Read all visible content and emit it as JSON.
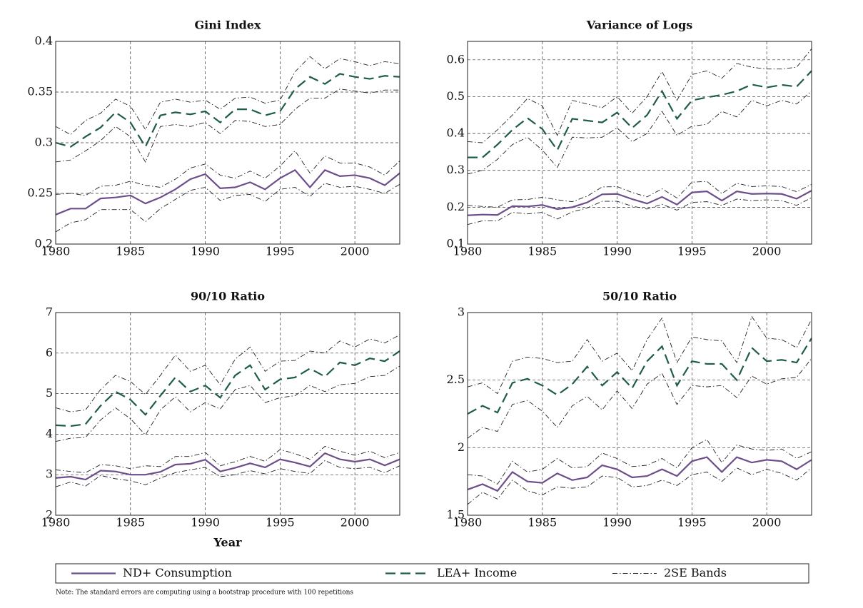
{
  "chart_data": [
    {
      "type": "line",
      "title": "Gini Index",
      "x": [
        1980,
        1981,
        1982,
        1983,
        1984,
        1985,
        1986,
        1987,
        1988,
        1989,
        1990,
        1991,
        1992,
        1993,
        1994,
        1995,
        1996,
        1997,
        1998,
        1999,
        2000,
        2001,
        2002,
        2003
      ],
      "xlim": [
        1980,
        2003
      ],
      "xticks": [
        1980,
        1985,
        1990,
        1995,
        2000
      ],
      "ylim": [
        0.2,
        0.4
      ],
      "yticks": [
        0.2,
        0.25,
        0.3,
        0.35,
        0.4
      ],
      "grid": true,
      "series": [
        {
          "name": "ND+ Consumption",
          "color": "#6b4e8a",
          "style": "solid",
          "values": [
            0.229,
            0.235,
            0.235,
            0.245,
            0.246,
            0.248,
            0.24,
            0.246,
            0.254,
            0.264,
            0.269,
            0.255,
            0.256,
            0.261,
            0.254,
            0.265,
            0.273,
            0.256,
            0.273,
            0.267,
            0.268,
            0.265,
            0.258,
            0.27
          ]
        },
        {
          "name": "LEA+ Income",
          "color": "#1e5c46",
          "style": "dashed",
          "values": [
            0.3,
            0.296,
            0.306,
            0.315,
            0.33,
            0.32,
            0.296,
            0.327,
            0.33,
            0.328,
            0.331,
            0.32,
            0.333,
            0.333,
            0.327,
            0.331,
            0.353,
            0.365,
            0.358,
            0.368,
            0.365,
            0.363,
            0.366,
            0.365
          ]
        },
        {
          "name": "2SE Bands",
          "color": "#222222",
          "style": "dashdot",
          "values": [
            0.249,
            0.25,
            0.248,
            0.257,
            0.258,
            0.262,
            0.258,
            0.256,
            0.264,
            0.275,
            0.279,
            0.268,
            0.265,
            0.272,
            0.265,
            0.277,
            0.292,
            0.27,
            0.287,
            0.28,
            0.28,
            0.276,
            0.268,
            0.282
          ]
        },
        {
          "name": "2SE Bands",
          "color": "#222222",
          "style": "dashdot",
          "values": [
            0.212,
            0.221,
            0.224,
            0.234,
            0.234,
            0.234,
            0.222,
            0.235,
            0.244,
            0.253,
            0.256,
            0.243,
            0.248,
            0.249,
            0.242,
            0.254,
            0.256,
            0.247,
            0.26,
            0.256,
            0.257,
            0.254,
            0.25,
            0.259
          ]
        },
        {
          "name": "2SE Bands",
          "color": "#222222",
          "style": "dashdot",
          "values": [
            0.316,
            0.308,
            0.322,
            0.329,
            0.343,
            0.336,
            0.313,
            0.34,
            0.343,
            0.34,
            0.342,
            0.333,
            0.344,
            0.345,
            0.339,
            0.342,
            0.37,
            0.385,
            0.373,
            0.383,
            0.38,
            0.376,
            0.38,
            0.378
          ]
        },
        {
          "name": "2SE Bands",
          "color": "#222222",
          "style": "dashdot",
          "values": [
            0.281,
            0.283,
            0.292,
            0.302,
            0.316,
            0.306,
            0.281,
            0.316,
            0.318,
            0.316,
            0.32,
            0.309,
            0.322,
            0.321,
            0.316,
            0.318,
            0.333,
            0.344,
            0.344,
            0.353,
            0.351,
            0.349,
            0.352,
            0.352
          ]
        }
      ]
    },
    {
      "type": "line",
      "title": "Variance of Logs",
      "x": [
        1980,
        1981,
        1982,
        1983,
        1984,
        1985,
        1986,
        1987,
        1988,
        1989,
        1990,
        1991,
        1992,
        1993,
        1994,
        1995,
        1996,
        1997,
        1998,
        1999,
        2000,
        2001,
        2002,
        2003
      ],
      "xlim": [
        1980,
        2003
      ],
      "xticks": [
        1980,
        1985,
        1990,
        1995,
        2000
      ],
      "ylim": [
        0.1,
        0.65
      ],
      "yticks": [
        0.1,
        0.2,
        0.3,
        0.4,
        0.5,
        0.6
      ],
      "grid": true,
      "series": [
        {
          "name": "ND+ Consumption",
          "color": "#6b4e8a",
          "style": "solid",
          "values": [
            0.178,
            0.18,
            0.179,
            0.203,
            0.202,
            0.206,
            0.195,
            0.2,
            0.213,
            0.235,
            0.236,
            0.222,
            0.21,
            0.228,
            0.207,
            0.24,
            0.243,
            0.218,
            0.243,
            0.236,
            0.237,
            0.236,
            0.223,
            0.245
          ]
        },
        {
          "name": "LEA+ Income",
          "color": "#1e5c46",
          "style": "dashed",
          "values": [
            0.335,
            0.335,
            0.37,
            0.41,
            0.442,
            0.412,
            0.355,
            0.44,
            0.435,
            0.43,
            0.457,
            0.415,
            0.45,
            0.515,
            0.44,
            0.49,
            0.498,
            0.505,
            0.515,
            0.533,
            0.525,
            0.532,
            0.527,
            0.57
          ]
        },
        {
          "name": "2SE Bands",
          "color": "#222222",
          "style": "dashdot",
          "values": [
            0.205,
            0.202,
            0.2,
            0.22,
            0.221,
            0.227,
            0.22,
            0.215,
            0.23,
            0.255,
            0.256,
            0.24,
            0.228,
            0.25,
            0.225,
            0.268,
            0.27,
            0.237,
            0.265,
            0.256,
            0.258,
            0.256,
            0.242,
            0.262
          ]
        },
        {
          "name": "2SE Bands",
          "color": "#222222",
          "style": "dashdot",
          "values": [
            0.153,
            0.163,
            0.163,
            0.186,
            0.182,
            0.186,
            0.168,
            0.187,
            0.198,
            0.216,
            0.216,
            0.203,
            0.195,
            0.208,
            0.192,
            0.213,
            0.215,
            0.205,
            0.222,
            0.218,
            0.22,
            0.218,
            0.205,
            0.226
          ]
        },
        {
          "name": "2SE Bands",
          "color": "#222222",
          "style": "dashdot",
          "values": [
            0.378,
            0.375,
            0.41,
            0.45,
            0.495,
            0.475,
            0.395,
            0.49,
            0.48,
            0.47,
            0.5,
            0.455,
            0.5,
            0.568,
            0.49,
            0.56,
            0.57,
            0.55,
            0.59,
            0.58,
            0.575,
            0.575,
            0.58,
            0.63
          ]
        },
        {
          "name": "2SE Bands",
          "color": "#222222",
          "style": "dashdot",
          "values": [
            0.29,
            0.3,
            0.33,
            0.37,
            0.39,
            0.355,
            0.308,
            0.39,
            0.388,
            0.39,
            0.415,
            0.378,
            0.4,
            0.46,
            0.395,
            0.42,
            0.425,
            0.46,
            0.445,
            0.49,
            0.475,
            0.49,
            0.48,
            0.515
          ]
        }
      ]
    },
    {
      "type": "line",
      "title": "90/10 Ratio",
      "xlabel": "Year",
      "x": [
        1980,
        1981,
        1982,
        1983,
        1984,
        1985,
        1986,
        1987,
        1988,
        1989,
        1990,
        1991,
        1992,
        1993,
        1994,
        1995,
        1996,
        1997,
        1998,
        1999,
        2000,
        2001,
        2002,
        2003
      ],
      "xlim": [
        1980,
        2003
      ],
      "xticks": [
        1980,
        1985,
        1990,
        1995,
        2000
      ],
      "ylim": [
        2,
        7
      ],
      "yticks": [
        2,
        3,
        4,
        5,
        6,
        7
      ],
      "grid": true,
      "series": [
        {
          "name": "ND+ Consumption",
          "color": "#6b4e8a",
          "style": "solid",
          "values": [
            2.92,
            2.95,
            2.88,
            3.1,
            3.08,
            3.0,
            3.0,
            3.07,
            3.25,
            3.27,
            3.37,
            3.08,
            3.17,
            3.28,
            3.18,
            3.38,
            3.3,
            3.2,
            3.53,
            3.38,
            3.32,
            3.38,
            3.23,
            3.38
          ]
        },
        {
          "name": "LEA+ Income",
          "color": "#1e5c46",
          "style": "dashed",
          "values": [
            4.22,
            4.2,
            4.25,
            4.7,
            5.05,
            4.85,
            4.48,
            4.95,
            5.4,
            5.05,
            5.2,
            4.9,
            5.45,
            5.7,
            5.1,
            5.35,
            5.4,
            5.62,
            5.42,
            5.77,
            5.7,
            5.87,
            5.8,
            6.05
          ]
        },
        {
          "name": "2SE Bands",
          "color": "#222222",
          "style": "dashdot",
          "values": [
            3.12,
            3.08,
            3.05,
            3.25,
            3.22,
            3.15,
            3.22,
            3.2,
            3.45,
            3.45,
            3.55,
            3.22,
            3.32,
            3.45,
            3.33,
            3.62,
            3.52,
            3.38,
            3.7,
            3.58,
            3.48,
            3.58,
            3.42,
            3.55
          ]
        },
        {
          "name": "2SE Bands",
          "color": "#222222",
          "style": "dashdot",
          "values": [
            2.7,
            2.82,
            2.72,
            2.98,
            2.9,
            2.85,
            2.75,
            2.92,
            3.05,
            3.12,
            3.18,
            2.95,
            3.0,
            3.1,
            3.02,
            3.15,
            3.08,
            3.03,
            3.35,
            3.18,
            3.15,
            3.18,
            3.05,
            3.22
          ]
        },
        {
          "name": "2SE Bands",
          "color": "#222222",
          "style": "dashdot",
          "values": [
            4.65,
            4.55,
            4.6,
            5.1,
            5.45,
            5.3,
            4.98,
            5.45,
            5.95,
            5.55,
            5.7,
            5.22,
            5.85,
            6.15,
            5.55,
            5.8,
            5.82,
            6.05,
            6.0,
            6.3,
            6.15,
            6.35,
            6.25,
            6.45
          ]
        },
        {
          "name": "2SE Bands",
          "color": "#222222",
          "style": "dashdot",
          "values": [
            3.82,
            3.9,
            3.92,
            4.35,
            4.65,
            4.38,
            3.98,
            4.6,
            4.92,
            4.55,
            4.78,
            4.62,
            5.1,
            5.2,
            4.78,
            4.9,
            4.95,
            5.2,
            5.05,
            5.22,
            5.25,
            5.42,
            5.45,
            5.68
          ]
        }
      ]
    },
    {
      "type": "line",
      "title": "50/10 Ratio",
      "x": [
        1980,
        1981,
        1982,
        1983,
        1984,
        1985,
        1986,
        1987,
        1988,
        1989,
        1990,
        1991,
        1992,
        1993,
        1994,
        1995,
        1996,
        1997,
        1998,
        1999,
        2000,
        2001,
        2002,
        2003
      ],
      "xlim": [
        1980,
        2003
      ],
      "xticks": [
        1980,
        1985,
        1990,
        1995,
        2000
      ],
      "ylim": [
        1.5,
        3
      ],
      "yticks": [
        1.5,
        2,
        2.5,
        3
      ],
      "grid": true,
      "series": [
        {
          "name": "ND+ Consumption",
          "color": "#6b4e8a",
          "style": "solid",
          "values": [
            1.69,
            1.73,
            1.68,
            1.82,
            1.75,
            1.74,
            1.81,
            1.76,
            1.78,
            1.87,
            1.84,
            1.78,
            1.79,
            1.84,
            1.79,
            1.9,
            1.93,
            1.82,
            1.93,
            1.89,
            1.91,
            1.9,
            1.84,
            1.91
          ]
        },
        {
          "name": "LEA+ Income",
          "color": "#1e5c46",
          "style": "dashed",
          "values": [
            2.25,
            2.31,
            2.26,
            2.48,
            2.51,
            2.46,
            2.39,
            2.47,
            2.6,
            2.46,
            2.56,
            2.44,
            2.64,
            2.75,
            2.46,
            2.64,
            2.62,
            2.62,
            2.5,
            2.74,
            2.64,
            2.65,
            2.63,
            2.81
          ]
        },
        {
          "name": "2SE Bands",
          "color": "#222222",
          "style": "dashdot",
          "values": [
            1.8,
            1.79,
            1.73,
            1.9,
            1.82,
            1.84,
            1.92,
            1.85,
            1.86,
            1.96,
            1.92,
            1.86,
            1.87,
            1.92,
            1.85,
            2.0,
            2.06,
            1.89,
            2.02,
            1.99,
            1.98,
            1.99,
            1.92,
            1.97
          ]
        },
        {
          "name": "2SE Bands",
          "color": "#222222",
          "style": "dashdot",
          "values": [
            1.58,
            1.67,
            1.62,
            1.76,
            1.68,
            1.65,
            1.71,
            1.7,
            1.71,
            1.79,
            1.78,
            1.71,
            1.72,
            1.76,
            1.72,
            1.8,
            1.82,
            1.75,
            1.85,
            1.8,
            1.84,
            1.81,
            1.76,
            1.85
          ]
        },
        {
          "name": "2SE Bands",
          "color": "#222222",
          "style": "dashdot",
          "values": [
            2.45,
            2.48,
            2.4,
            2.64,
            2.67,
            2.66,
            2.63,
            2.64,
            2.8,
            2.64,
            2.7,
            2.57,
            2.8,
            2.96,
            2.63,
            2.82,
            2.8,
            2.79,
            2.63,
            2.97,
            2.81,
            2.8,
            2.74,
            2.95
          ]
        },
        {
          "name": "2SE Bands",
          "color": "#222222",
          "style": "dashdot",
          "values": [
            2.07,
            2.15,
            2.12,
            2.32,
            2.35,
            2.27,
            2.15,
            2.31,
            2.38,
            2.28,
            2.42,
            2.29,
            2.47,
            2.55,
            2.32,
            2.46,
            2.45,
            2.46,
            2.37,
            2.53,
            2.47,
            2.51,
            2.52,
            2.66
          ]
        }
      ]
    }
  ],
  "note": "Note: The standard errors are computing using a bootstrap procedure with 100 repetitions"
}
